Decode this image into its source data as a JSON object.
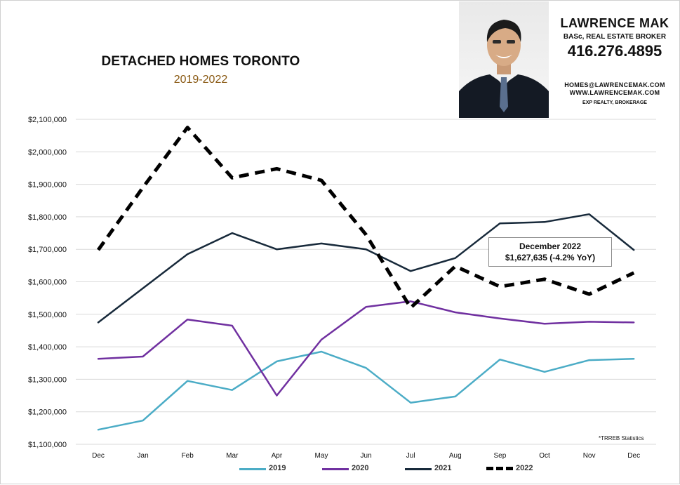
{
  "header": {
    "title": "DETACHED HOMES TORONTO",
    "subtitle": "2019-2022"
  },
  "agent": {
    "name": "LAWRENCE MAK",
    "credentials": "BASc, REAL ESTATE BROKER",
    "phone": "416.276.4895",
    "email": "HOMES@LAWRENCEMAK.COM",
    "website": "WWW.LAWRENCEMAK.COM",
    "brokerage": "EXP REALTY, BROKERAGE"
  },
  "callout": {
    "line1": "December 2022",
    "line2": "$1,627,635  (-4.2%  YoY)"
  },
  "source_note": "*TRREB Statistics",
  "colors": {
    "s2019": "#4bacc6",
    "s2020": "#7030a0",
    "s2021": "#17293a",
    "s2022": "#000000",
    "grid": "#d9d9d9"
  },
  "chart_data": {
    "type": "line",
    "title": "DETACHED HOMES TORONTO",
    "subtitle": "2019-2022",
    "categories": [
      "Dec",
      "Jan",
      "Feb",
      "Mar",
      "Apr",
      "May",
      "Jun",
      "Jul",
      "Aug",
      "Sep",
      "Oct",
      "Nov",
      "Dec"
    ],
    "ylim": [
      1100000,
      2100000
    ],
    "yticks": [
      "$1,100,000",
      "$1,200,000",
      "$1,300,000",
      "$1,400,000",
      "$1,500,000",
      "$1,600,000",
      "$1,700,000",
      "$1,800,000",
      "$1,900,000",
      "$2,000,000",
      "$2,100,000"
    ],
    "ytick_values": [
      1100000,
      1200000,
      1300000,
      1400000,
      1500000,
      1600000,
      1700000,
      1800000,
      1900000,
      2000000,
      2100000
    ],
    "grid": true,
    "legend": "bottom",
    "series": [
      {
        "name": "2019",
        "style": "solid",
        "values": [
          1145000,
          1173000,
          1295000,
          1267000,
          1355000,
          1385000,
          1335000,
          1228000,
          1247000,
          1361000,
          1323000,
          1359000,
          1363000
        ]
      },
      {
        "name": "2020",
        "style": "solid",
        "values": [
          1363000,
          1370000,
          1484000,
          1465000,
          1250000,
          1422000,
          1523000,
          1540000,
          1506000,
          1487000,
          1471000,
          1477000,
          1475000
        ]
      },
      {
        "name": "2021",
        "style": "solid",
        "values": [
          1475000,
          1580000,
          1685000,
          1750000,
          1700000,
          1718000,
          1700000,
          1633000,
          1673000,
          1780000,
          1784000,
          1808000,
          1698000
        ]
      },
      {
        "name": "2022",
        "style": "dashed",
        "values": [
          1698000,
          1890000,
          2075000,
          1920000,
          1948000,
          1912000,
          1745000,
          1520000,
          1648000,
          1585000,
          1608000,
          1562000,
          1627635
        ]
      }
    ]
  }
}
